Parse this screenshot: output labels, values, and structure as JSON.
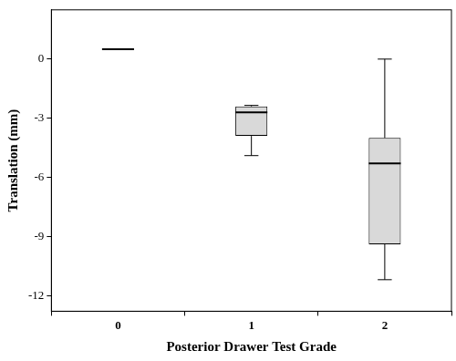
{
  "chart_data": {
    "type": "box",
    "x_label": "Posterior Drawer Test Grade",
    "y_label": "Translation (mm)",
    "categories": [
      "0",
      "1",
      "2"
    ],
    "boxes": [
      {
        "min": 0.5,
        "q1": 0.5,
        "median": 0.5,
        "q3": 0.5,
        "max": 0.5
      },
      {
        "min": -4.9,
        "q1": -3.9,
        "median": -2.7,
        "q3": -2.4,
        "max": -2.35
      },
      {
        "min": -11.2,
        "q1": -9.4,
        "median": -5.3,
        "q3": -4.0,
        "max": 0.0
      }
    ],
    "color": "#d9d9d9",
    "ylim": [
      -12.8,
      2.5
    ],
    "yticks": [
      -12,
      -9,
      -6,
      -3,
      0
    ],
    "grid": false
  }
}
